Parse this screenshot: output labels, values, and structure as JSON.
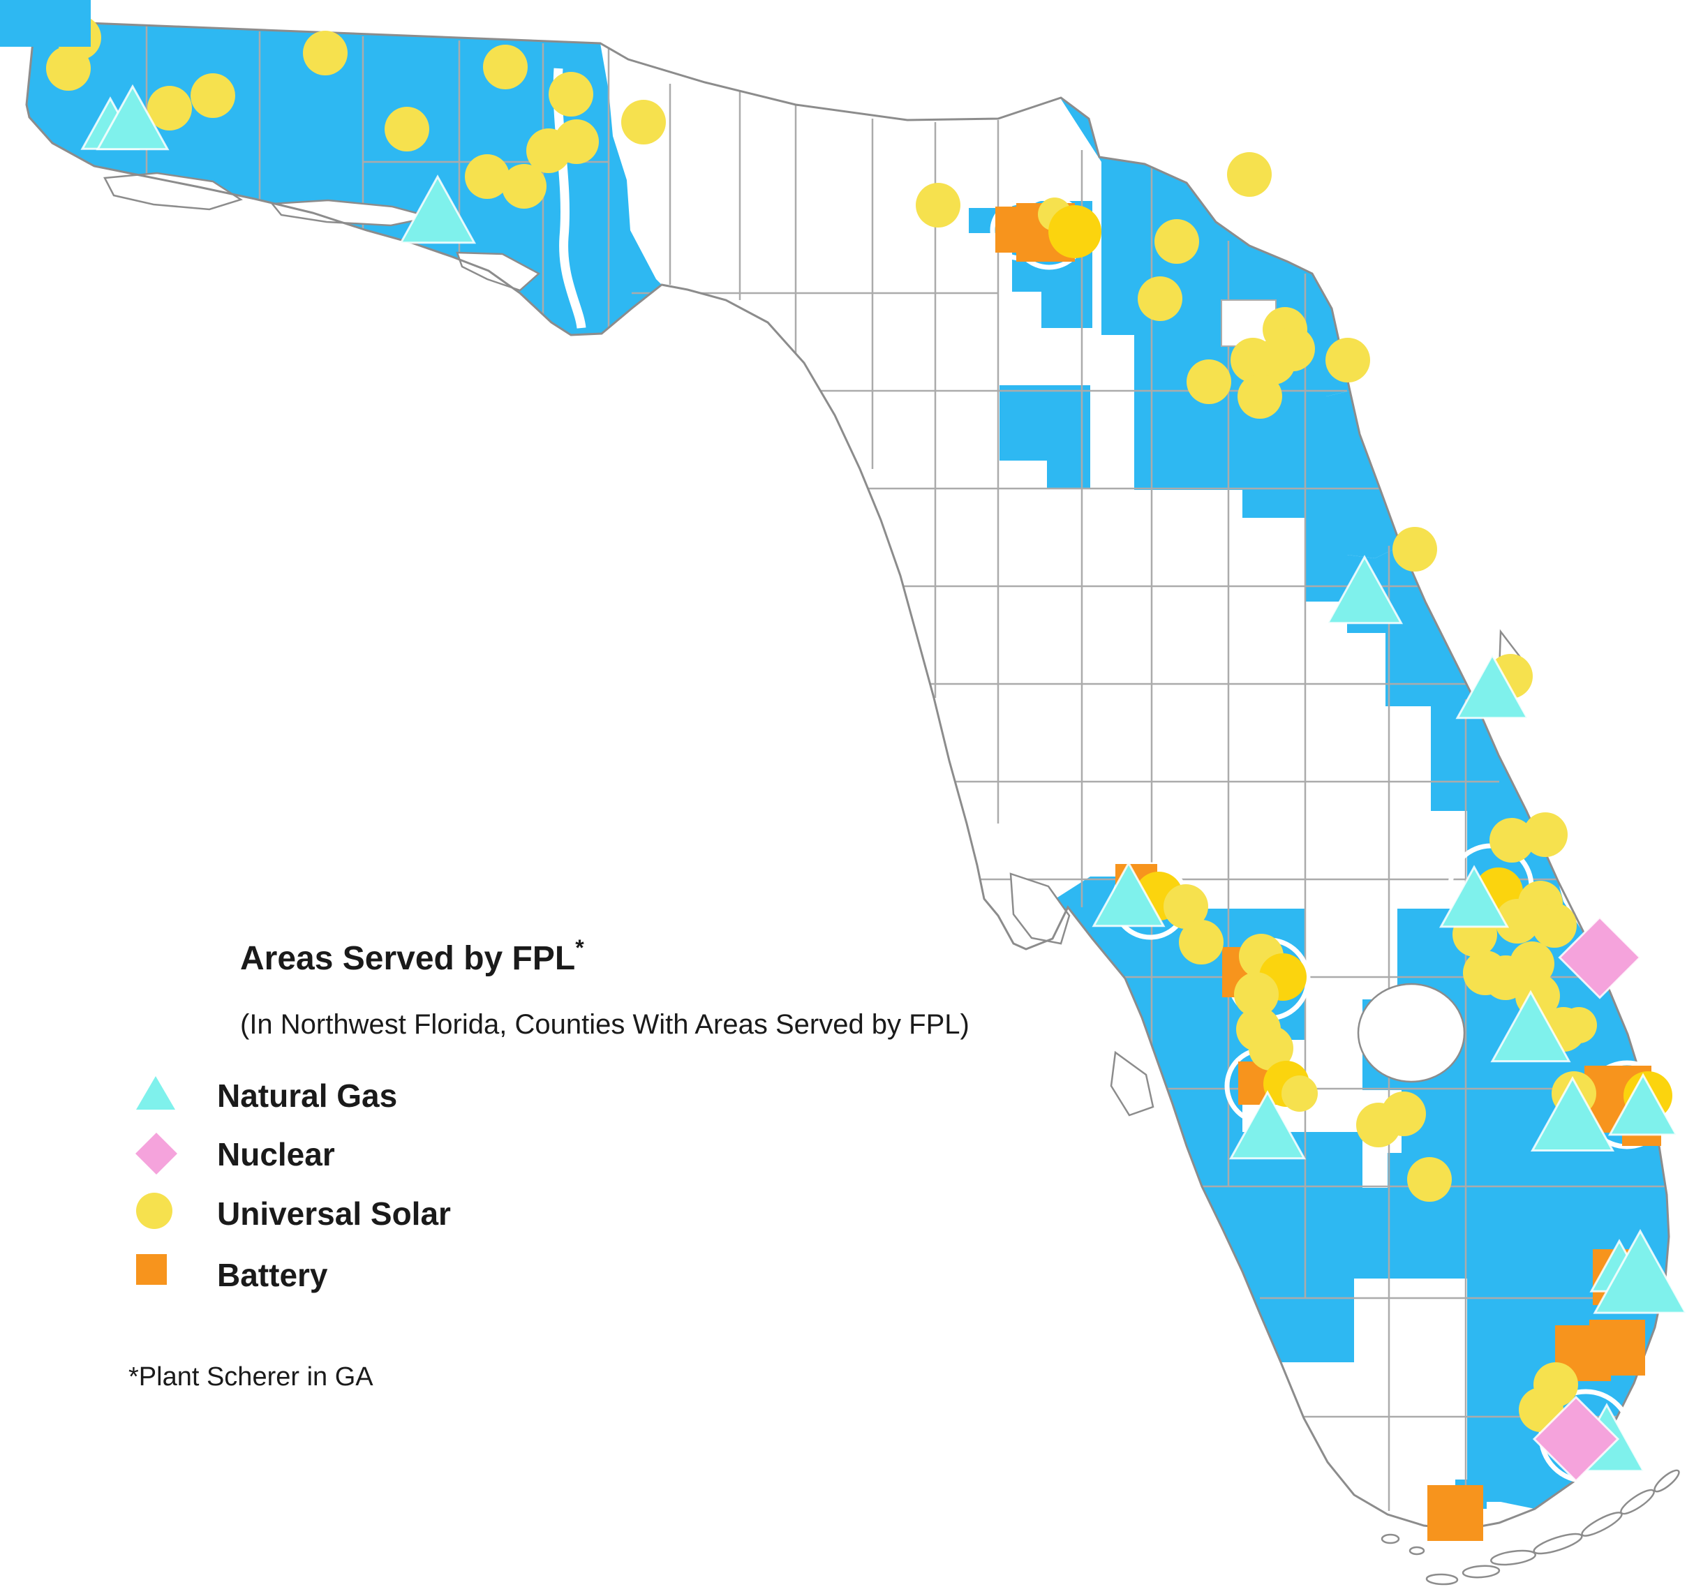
{
  "legend": {
    "area_label": "Areas Served by FPL",
    "area_label_superscript": "*",
    "area_sublabel": "(In Northwest Florida, Counties With Areas Served by FPL)",
    "items": [
      {
        "id": "natural-gas",
        "label": "Natural Gas"
      },
      {
        "id": "nuclear",
        "label": "Nuclear"
      },
      {
        "id": "universal-solar",
        "label": "Universal Solar"
      },
      {
        "id": "battery",
        "label": "Battery"
      }
    ],
    "footnote": "*Plant Scherer in GA"
  },
  "colors": {
    "service_area": "#2EB8F2",
    "solar": "#F6E14E",
    "solar_gold": "#FBD40E",
    "natural_gas": "#7FF1EC",
    "nuclear": "#F5A3DC",
    "battery": "#F7941D",
    "county_line": "#ABABAB",
    "coast_line": "#8C8C8C"
  },
  "map": {
    "markers": {
      "solar": [
        [
          113,
          54
        ],
        [
          98,
          98
        ],
        [
          243,
          155
        ],
        [
          305,
          137
        ],
        [
          466,
          76
        ],
        [
          583,
          185
        ],
        [
          724,
          96
        ],
        [
          818,
          135
        ],
        [
          922,
          175
        ],
        [
          826,
          203
        ],
        [
          786,
          216
        ],
        [
          751,
          267
        ],
        [
          698,
          253
        ],
        [
          1344,
          294
        ],
        [
          1511,
          307,
          24
        ],
        [
          1540,
          332,
          38,
          1
        ],
        [
          1790,
          250
        ],
        [
          1686,
          346
        ],
        [
          1662,
          428
        ],
        [
          1841,
          472
        ],
        [
          1852,
          500
        ],
        [
          1795,
          516
        ],
        [
          1824,
          519
        ],
        [
          1732,
          547
        ],
        [
          1805,
          568
        ],
        [
          1931,
          516
        ],
        [
          2027,
          787
        ],
        [
          2164,
          969
        ],
        [
          2166,
          1204
        ],
        [
          2214,
          1196
        ],
        [
          2147,
          1278,
          35,
          1
        ],
        [
          2207,
          1294
        ],
        [
          2113,
          1339
        ],
        [
          2174,
          1320
        ],
        [
          2227,
          1326
        ],
        [
          2128,
          1394
        ],
        [
          2157,
          1401
        ],
        [
          2195,
          1381
        ],
        [
          2203,
          1427
        ],
        [
          2240,
          1475
        ],
        [
          2262,
          1469,
          26
        ],
        [
          2255,
          1567
        ],
        [
          2361,
          1570,
          35,
          1
        ],
        [
          1660,
          1284,
          35,
          1
        ],
        [
          1699,
          1299
        ],
        [
          1721,
          1350
        ],
        [
          1807,
          1370
        ],
        [
          1838,
          1400,
          34,
          1
        ],
        [
          1800,
          1425
        ],
        [
          1803,
          1475
        ],
        [
          1821,
          1502
        ],
        [
          1843,
          1553,
          33,
          1
        ],
        [
          1862,
          1567,
          26
        ],
        [
          1975,
          1612
        ],
        [
          2011,
          1596
        ],
        [
          2048,
          1690
        ],
        [
          2229,
          1984
        ],
        [
          2208,
          2020
        ]
      ],
      "natural_gas": [
        [
          158,
          183,
          80
        ],
        [
          190,
          176,
          100
        ],
        [
          627,
          308,
          105
        ],
        [
          1955,
          853,
          105
        ],
        [
          2138,
          991,
          100
        ],
        [
          2112,
          1292,
          95
        ],
        [
          2193,
          1479,
          110
        ],
        [
          2253,
          1605,
          115
        ],
        [
          2354,
          1590,
          95
        ],
        [
          1617,
          1289,
          100
        ],
        [
          1816,
          1620,
          105
        ],
        [
          2320,
          1820,
          80
        ],
        [
          2350,
          1832,
          130
        ],
        [
          2302,
          2068,
          105
        ]
      ],
      "nuclear": [
        [
          2292,
          1372,
          115
        ],
        [
          2258,
          2062,
          120
        ]
      ],
      "battery": [
        [
          1459,
          329,
          66
        ],
        [
          1498,
          333,
          84
        ],
        [
          1628,
          1268,
          60
        ],
        [
          1787,
          1393,
          72
        ],
        [
          1805,
          1552,
          62
        ],
        [
          2318,
          1575,
          96
        ],
        [
          2352,
          1614,
          56
        ],
        [
          2322,
          1830,
          80
        ],
        [
          2268,
          1939,
          80
        ],
        [
          2317,
          1931,
          80
        ],
        [
          2085,
          2168,
          80
        ]
      ]
    },
    "highlight_rings": [
      [
        1503,
        333,
        50
      ],
      [
        1462,
        330,
        40
      ],
      [
        1648,
        1291,
        52
      ],
      [
        1818,
        1403,
        56
      ],
      [
        1810,
        1556,
        52
      ],
      [
        2136,
        1270,
        58
      ],
      [
        2331,
        1583,
        60
      ],
      [
        2272,
        2058,
        64
      ]
    ]
  }
}
